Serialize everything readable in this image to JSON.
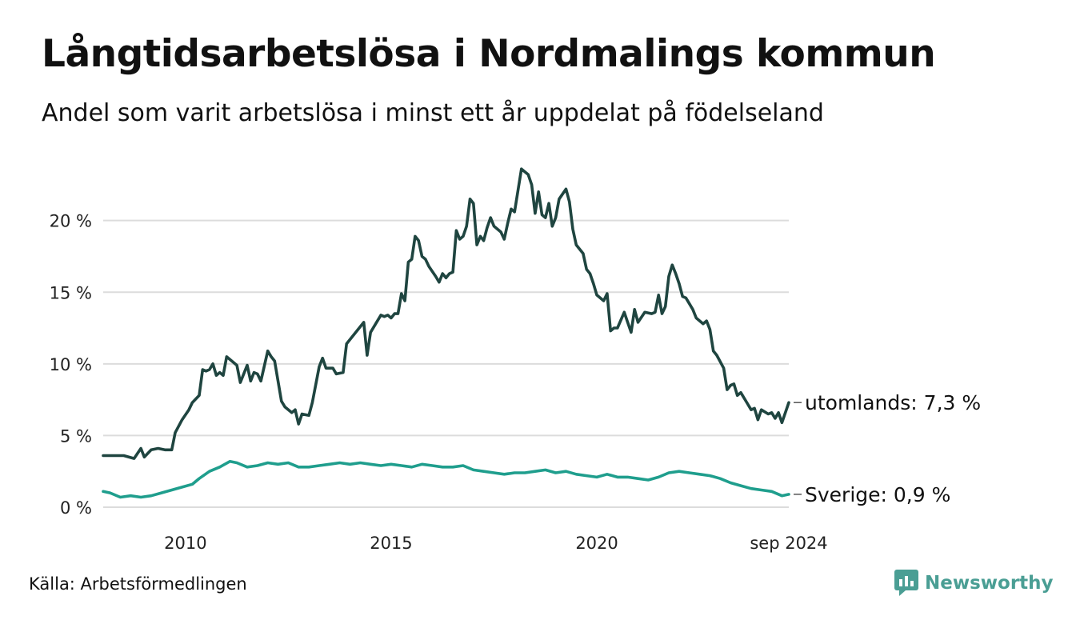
{
  "title": "Långtidsarbetslösa i Nordmalings kommun",
  "subtitle": "Andel som varit arbetslösa i minst ett år uppdelat på födelseland",
  "source": "Källa: Arbetsförmedlingen",
  "brand": "Newsworthy",
  "colors": {
    "utomlands": "#1f4540",
    "sverige": "#1f9e8d",
    "grid": "#dcdcdc",
    "brand": "#4a9e94"
  },
  "chart_data": {
    "type": "line",
    "title": "Långtidsarbetslösa i Nordmalings kommun",
    "subtitle": "Andel som varit arbetslösa i minst ett år uppdelat på födelseland",
    "xlabel": "",
    "ylabel": "",
    "xlim": [
      "2008-01",
      "2024-09"
    ],
    "ylim": [
      0,
      24
    ],
    "x_ticks": [
      {
        "x": "2010-01",
        "label": "2010"
      },
      {
        "x": "2015-01",
        "label": "2015"
      },
      {
        "x": "2020-01",
        "label": "2020"
      },
      {
        "x": "2024-09",
        "label": "sep 2024"
      }
    ],
    "y_ticks": [
      {
        "value": 0,
        "label": "0 %"
      },
      {
        "value": 5,
        "label": "5 %"
      },
      {
        "value": 10,
        "label": "10 %"
      },
      {
        "value": 15,
        "label": "15 %"
      },
      {
        "value": 20,
        "label": "20 %"
      }
    ],
    "grid": true,
    "legend": "end-labels",
    "series": [
      {
        "key": "utomlands",
        "end_label": "utomlands: 7,3 %",
        "points": [
          [
            "2008-01",
            3.6
          ],
          [
            "2008-04",
            3.6
          ],
          [
            "2008-07",
            3.6
          ],
          [
            "2008-10",
            3.4
          ],
          [
            "2008-12",
            4.1
          ],
          [
            "2009-01",
            3.5
          ],
          [
            "2009-03",
            4.0
          ],
          [
            "2009-05",
            4.1
          ],
          [
            "2009-07",
            4.0
          ],
          [
            "2009-09",
            4.0
          ],
          [
            "2009-10",
            5.2
          ],
          [
            "2009-12",
            6.1
          ],
          [
            "2010-02",
            6.8
          ],
          [
            "2010-03",
            7.3
          ],
          [
            "2010-05",
            7.8
          ],
          [
            "2010-06",
            9.6
          ],
          [
            "2010-07",
            9.5
          ],
          [
            "2010-08",
            9.6
          ],
          [
            "2010-09",
            10.0
          ],
          [
            "2010-10",
            9.2
          ],
          [
            "2010-11",
            9.4
          ],
          [
            "2010-12",
            9.2
          ],
          [
            "2011-01",
            10.5
          ],
          [
            "2011-03",
            10.1
          ],
          [
            "2011-04",
            9.9
          ],
          [
            "2011-05",
            8.7
          ],
          [
            "2011-07",
            9.9
          ],
          [
            "2011-08",
            8.8
          ],
          [
            "2011-09",
            9.4
          ],
          [
            "2011-10",
            9.3
          ],
          [
            "2011-11",
            8.8
          ],
          [
            "2012-01",
            10.9
          ],
          [
            "2012-02",
            10.5
          ],
          [
            "2012-03",
            10.2
          ],
          [
            "2012-05",
            7.4
          ],
          [
            "2012-06",
            7.0
          ],
          [
            "2012-08",
            6.6
          ],
          [
            "2012-09",
            6.8
          ],
          [
            "2012-10",
            5.8
          ],
          [
            "2012-11",
            6.5
          ],
          [
            "2013-01",
            6.4
          ],
          [
            "2013-02",
            7.3
          ],
          [
            "2013-04",
            9.8
          ],
          [
            "2013-05",
            10.4
          ],
          [
            "2013-06",
            9.7
          ],
          [
            "2013-08",
            9.7
          ],
          [
            "2013-09",
            9.3
          ],
          [
            "2013-11",
            9.4
          ],
          [
            "2013-12",
            11.4
          ],
          [
            "2014-03",
            12.3
          ],
          [
            "2014-05",
            12.9
          ],
          [
            "2014-06",
            10.6
          ],
          [
            "2014-07",
            12.2
          ],
          [
            "2014-09",
            13.0
          ],
          [
            "2014-10",
            13.4
          ],
          [
            "2014-11",
            13.3
          ],
          [
            "2014-12",
            13.4
          ],
          [
            "2015-01",
            13.2
          ],
          [
            "2015-02",
            13.5
          ],
          [
            "2015-03",
            13.5
          ],
          [
            "2015-04",
            14.9
          ],
          [
            "2015-05",
            14.4
          ],
          [
            "2015-06",
            17.1
          ],
          [
            "2015-07",
            17.3
          ],
          [
            "2015-08",
            18.9
          ],
          [
            "2015-09",
            18.6
          ],
          [
            "2015-10",
            17.5
          ],
          [
            "2015-11",
            17.3
          ],
          [
            "2015-12",
            16.8
          ],
          [
            "2016-02",
            16.1
          ],
          [
            "2016-03",
            15.7
          ],
          [
            "2016-04",
            16.3
          ],
          [
            "2016-05",
            16.0
          ],
          [
            "2016-06",
            16.3
          ],
          [
            "2016-07",
            16.4
          ],
          [
            "2016-08",
            19.3
          ],
          [
            "2016-09",
            18.7
          ],
          [
            "2016-10",
            18.9
          ],
          [
            "2016-11",
            19.6
          ],
          [
            "2016-12",
            21.5
          ],
          [
            "2017-01",
            21.2
          ],
          [
            "2017-02",
            18.3
          ],
          [
            "2017-03",
            18.9
          ],
          [
            "2017-04",
            18.6
          ],
          [
            "2017-05",
            19.5
          ],
          [
            "2017-06",
            20.2
          ],
          [
            "2017-07",
            19.6
          ],
          [
            "2017-09",
            19.2
          ],
          [
            "2017-10",
            18.7
          ],
          [
            "2017-11",
            19.8
          ],
          [
            "2017-12",
            20.8
          ],
          [
            "2018-01",
            20.6
          ],
          [
            "2018-02",
            22.1
          ],
          [
            "2018-03",
            23.6
          ],
          [
            "2018-05",
            23.2
          ],
          [
            "2018-06",
            22.5
          ],
          [
            "2018-07",
            20.5
          ],
          [
            "2018-08",
            22.0
          ],
          [
            "2018-09",
            20.4
          ],
          [
            "2018-10",
            20.2
          ],
          [
            "2018-11",
            21.2
          ],
          [
            "2018-12",
            19.6
          ],
          [
            "2019-01",
            20.2
          ],
          [
            "2019-02",
            21.5
          ],
          [
            "2019-04",
            22.2
          ],
          [
            "2019-05",
            21.3
          ],
          [
            "2019-06",
            19.4
          ],
          [
            "2019-07",
            18.3
          ],
          [
            "2019-09",
            17.7
          ],
          [
            "2019-10",
            16.6
          ],
          [
            "2019-11",
            16.3
          ],
          [
            "2019-12",
            15.6
          ],
          [
            "2020-01",
            14.8
          ],
          [
            "2020-03",
            14.4
          ],
          [
            "2020-04",
            14.9
          ],
          [
            "2020-05",
            12.3
          ],
          [
            "2020-06",
            12.5
          ],
          [
            "2020-07",
            12.5
          ],
          [
            "2020-09",
            13.6
          ],
          [
            "2020-10",
            12.9
          ],
          [
            "2020-11",
            12.2
          ],
          [
            "2020-12",
            13.8
          ],
          [
            "2021-01",
            12.9
          ],
          [
            "2021-03",
            13.6
          ],
          [
            "2021-05",
            13.5
          ],
          [
            "2021-06",
            13.6
          ],
          [
            "2021-07",
            14.8
          ],
          [
            "2021-08",
            13.5
          ],
          [
            "2021-09",
            14.0
          ],
          [
            "2021-10",
            16.1
          ],
          [
            "2021-11",
            16.9
          ],
          [
            "2021-12",
            16.3
          ],
          [
            "2022-01",
            15.6
          ],
          [
            "2022-02",
            14.7
          ],
          [
            "2022-03",
            14.6
          ],
          [
            "2022-04",
            14.2
          ],
          [
            "2022-05",
            13.8
          ],
          [
            "2022-06",
            13.2
          ],
          [
            "2022-08",
            12.8
          ],
          [
            "2022-09",
            13.0
          ],
          [
            "2022-10",
            12.4
          ],
          [
            "2022-11",
            10.9
          ],
          [
            "2022-12",
            10.6
          ],
          [
            "2023-02",
            9.7
          ],
          [
            "2023-03",
            8.2
          ],
          [
            "2023-04",
            8.5
          ],
          [
            "2023-05",
            8.6
          ],
          [
            "2023-06",
            7.8
          ],
          [
            "2023-07",
            8.0
          ],
          [
            "2023-09",
            7.2
          ],
          [
            "2023-10",
            6.8
          ],
          [
            "2023-11",
            6.9
          ],
          [
            "2023-12",
            6.1
          ],
          [
            "2024-01",
            6.8
          ],
          [
            "2024-03",
            6.5
          ],
          [
            "2024-04",
            6.6
          ],
          [
            "2024-05",
            6.2
          ],
          [
            "2024-06",
            6.6
          ],
          [
            "2024-07",
            5.9
          ],
          [
            "2024-08",
            6.6
          ],
          [
            "2024-09",
            7.3
          ]
        ]
      },
      {
        "key": "sverige",
        "end_label": "Sverige: 0,9 %",
        "points": [
          [
            "2008-01",
            1.1
          ],
          [
            "2008-03",
            1.0
          ],
          [
            "2008-06",
            0.7
          ],
          [
            "2008-09",
            0.8
          ],
          [
            "2008-12",
            0.7
          ],
          [
            "2009-03",
            0.8
          ],
          [
            "2009-06",
            1.0
          ],
          [
            "2009-09",
            1.2
          ],
          [
            "2009-12",
            1.4
          ],
          [
            "2010-03",
            1.6
          ],
          [
            "2010-05",
            2.0
          ],
          [
            "2010-08",
            2.5
          ],
          [
            "2010-11",
            2.8
          ],
          [
            "2011-02",
            3.2
          ],
          [
            "2011-04",
            3.1
          ],
          [
            "2011-07",
            2.8
          ],
          [
            "2011-10",
            2.9
          ],
          [
            "2012-01",
            3.1
          ],
          [
            "2012-04",
            3.0
          ],
          [
            "2012-07",
            3.1
          ],
          [
            "2012-10",
            2.8
          ],
          [
            "2013-01",
            2.8
          ],
          [
            "2013-04",
            2.9
          ],
          [
            "2013-07",
            3.0
          ],
          [
            "2013-10",
            3.1
          ],
          [
            "2014-01",
            3.0
          ],
          [
            "2014-04",
            3.1
          ],
          [
            "2014-07",
            3.0
          ],
          [
            "2014-10",
            2.9
          ],
          [
            "2015-01",
            3.0
          ],
          [
            "2015-04",
            2.9
          ],
          [
            "2015-07",
            2.8
          ],
          [
            "2015-10",
            3.0
          ],
          [
            "2016-01",
            2.9
          ],
          [
            "2016-04",
            2.8
          ],
          [
            "2016-07",
            2.8
          ],
          [
            "2016-10",
            2.9
          ],
          [
            "2017-01",
            2.6
          ],
          [
            "2017-04",
            2.5
          ],
          [
            "2017-07",
            2.4
          ],
          [
            "2017-10",
            2.3
          ],
          [
            "2018-01",
            2.4
          ],
          [
            "2018-04",
            2.4
          ],
          [
            "2018-07",
            2.5
          ],
          [
            "2018-10",
            2.6
          ],
          [
            "2019-01",
            2.4
          ],
          [
            "2019-04",
            2.5
          ],
          [
            "2019-07",
            2.3
          ],
          [
            "2019-10",
            2.2
          ],
          [
            "2020-01",
            2.1
          ],
          [
            "2020-04",
            2.3
          ],
          [
            "2020-07",
            2.1
          ],
          [
            "2020-10",
            2.1
          ],
          [
            "2021-01",
            2.0
          ],
          [
            "2021-04",
            1.9
          ],
          [
            "2021-07",
            2.1
          ],
          [
            "2021-10",
            2.4
          ],
          [
            "2022-01",
            2.5
          ],
          [
            "2022-04",
            2.4
          ],
          [
            "2022-07",
            2.3
          ],
          [
            "2022-10",
            2.2
          ],
          [
            "2023-01",
            2.0
          ],
          [
            "2023-04",
            1.7
          ],
          [
            "2023-07",
            1.5
          ],
          [
            "2023-10",
            1.3
          ],
          [
            "2024-01",
            1.2
          ],
          [
            "2024-04",
            1.1
          ],
          [
            "2024-07",
            0.8
          ],
          [
            "2024-09",
            0.9
          ]
        ]
      }
    ]
  }
}
